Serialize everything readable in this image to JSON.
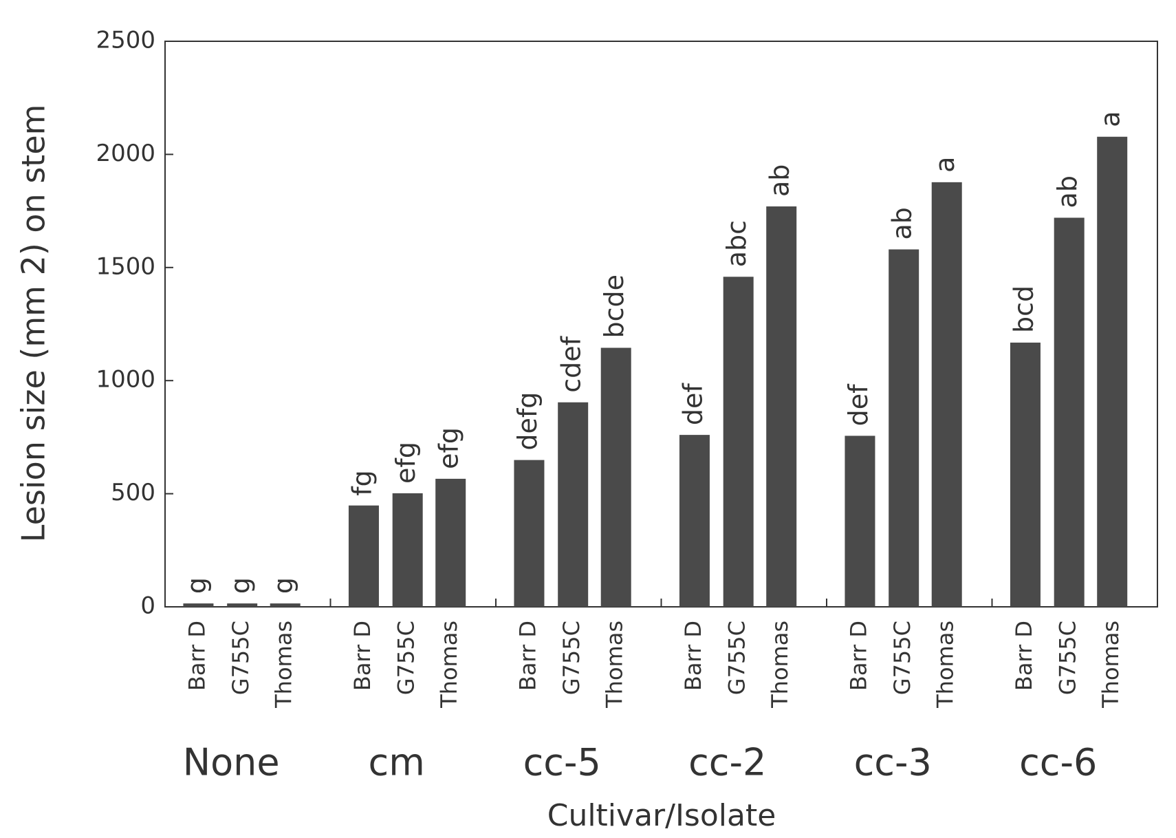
{
  "chart_data": {
    "type": "grouped-bar",
    "y_label": "Lesion size (mm 2) on stem",
    "x_label": "Cultivar/Isolate",
    "color": "#4a4a4a",
    "ylim": [
      0,
      2500
    ],
    "yticks": [
      0,
      500,
      1000,
      1500,
      2000,
      2500
    ],
    "groups": [
      {
        "name": "None",
        "categories": [
          "Barr D",
          "G755C",
          "Thomas"
        ],
        "values": [
          15,
          15,
          15
        ],
        "letters": [
          "g",
          "g",
          "g"
        ]
      },
      {
        "name": "cm",
        "categories": [
          "Barr D",
          "G755C",
          "Thomas"
        ],
        "values": [
          448,
          502,
          566
        ],
        "letters": [
          "fg",
          "efg",
          "efg"
        ]
      },
      {
        "name": "cc-5",
        "categories": [
          "Barr D",
          "G755C",
          "Thomas"
        ],
        "values": [
          649,
          904,
          1145
        ],
        "letters": [
          "defg",
          "cdef",
          "bcde"
        ]
      },
      {
        "name": "cc-2",
        "categories": [
          "Barr D",
          "G755C",
          "Thomas"
        ],
        "values": [
          760,
          1459,
          1770
        ],
        "letters": [
          "def",
          "abc",
          "ab"
        ]
      },
      {
        "name": "cc-3",
        "categories": [
          "Barr D",
          "G755C",
          "Thomas"
        ],
        "values": [
          756,
          1580,
          1877
        ],
        "letters": [
          "def",
          "ab",
          "a"
        ]
      },
      {
        "name": "cc-6",
        "categories": [
          "Barr D",
          "G755C",
          "Thomas"
        ],
        "values": [
          1168,
          1720,
          2078
        ],
        "letters": [
          "bcd",
          "ab",
          "a"
        ]
      }
    ]
  }
}
